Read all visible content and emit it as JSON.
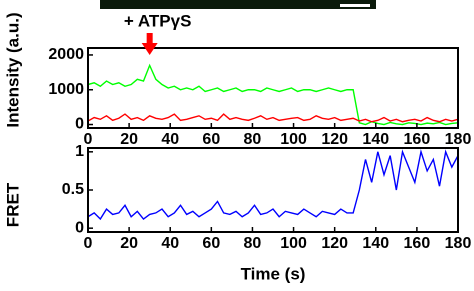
{
  "chart_data": [
    {
      "type": "line",
      "y_label": "Intensity (a.u.)",
      "annotation": {
        "text": "+ ATPγS",
        "x": 30
      },
      "x": [
        0,
        3,
        6,
        9,
        12,
        15,
        18,
        21,
        24,
        27,
        30,
        33,
        36,
        39,
        42,
        45,
        48,
        51,
        54,
        57,
        60,
        63,
        66,
        69,
        72,
        75,
        78,
        81,
        84,
        87,
        90,
        93,
        96,
        99,
        102,
        105,
        108,
        111,
        114,
        117,
        120,
        123,
        126,
        129,
        132,
        135,
        138,
        141,
        144,
        147,
        150,
        153,
        156,
        159,
        162,
        165,
        168,
        171,
        174,
        177,
        180
      ],
      "series": [
        {
          "color": "#00ff00",
          "values": [
            1150,
            1200,
            1100,
            1250,
            1150,
            1200,
            1100,
            1150,
            1300,
            1250,
            1700,
            1300,
            1150,
            1050,
            1100,
            1000,
            1050,
            1000,
            1100,
            950,
            1000,
            1050,
            950,
            1000,
            1050,
            950,
            1000,
            1000,
            950,
            1050,
            1000,
            950,
            1000,
            1050,
            950,
            1000,
            1000,
            950,
            1000,
            1050,
            1000,
            950,
            1000,
            1000,
            50,
            0,
            80,
            30,
            0,
            60,
            20,
            0,
            50,
            30,
            0,
            40,
            20,
            60,
            0,
            30,
            50
          ]
        },
        {
          "color": "#ff0000",
          "values": [
            100,
            200,
            150,
            250,
            120,
            180,
            300,
            150,
            200,
            120,
            250,
            180,
            150,
            200,
            300,
            120,
            150,
            200,
            250,
            150,
            180,
            120,
            300,
            150,
            200,
            150,
            120,
            180,
            250,
            150,
            200,
            120,
            150,
            180,
            200,
            120,
            150,
            250,
            180,
            150,
            200,
            120,
            150,
            180,
            100,
            150,
            80,
            120,
            200,
            100,
            150,
            80,
            120,
            150,
            100,
            200,
            120,
            80,
            150,
            100,
            150
          ]
        }
      ],
      "xlim": [
        0,
        180
      ],
      "xticks": [
        0,
        20,
        40,
        60,
        80,
        100,
        120,
        140,
        160,
        180
      ],
      "ylim": [
        -100,
        2200
      ],
      "yticks": [
        0,
        1000,
        2000
      ]
    },
    {
      "type": "line",
      "y_label": "FRET",
      "x_label": "Time (s)",
      "x": [
        0,
        3,
        6,
        9,
        12,
        15,
        18,
        21,
        24,
        27,
        30,
        33,
        36,
        39,
        42,
        45,
        48,
        51,
        54,
        57,
        60,
        63,
        66,
        69,
        72,
        75,
        78,
        81,
        84,
        87,
        90,
        93,
        96,
        99,
        102,
        105,
        108,
        111,
        114,
        117,
        120,
        123,
        126,
        129,
        132,
        135,
        138,
        141,
        144,
        147,
        150,
        153,
        156,
        159,
        162,
        165,
        168,
        171,
        174,
        177,
        180
      ],
      "series": [
        {
          "color": "#0000ff",
          "values": [
            0.15,
            0.2,
            0.12,
            0.25,
            0.18,
            0.2,
            0.3,
            0.15,
            0.22,
            0.12,
            0.18,
            0.2,
            0.25,
            0.15,
            0.2,
            0.3,
            0.18,
            0.22,
            0.15,
            0.2,
            0.25,
            0.35,
            0.2,
            0.18,
            0.22,
            0.15,
            0.2,
            0.3,
            0.18,
            0.2,
            0.25,
            0.15,
            0.22,
            0.2,
            0.18,
            0.25,
            0.2,
            0.15,
            0.22,
            0.2,
            0.18,
            0.25,
            0.2,
            0.2,
            0.5,
            0.9,
            0.6,
            1,
            0.7,
            0.95,
            0.5,
            1,
            0.8,
            0.6,
            1,
            0.75,
            0.9,
            0.55,
            1,
            0.8,
            0.95
          ]
        }
      ],
      "xlim": [
        0,
        180
      ],
      "xticks": [
        0,
        20,
        40,
        60,
        80,
        100,
        120,
        140,
        160,
        180
      ],
      "ylim": [
        -0.05,
        1.05
      ],
      "yticks": [
        0,
        0.5,
        1
      ]
    }
  ]
}
